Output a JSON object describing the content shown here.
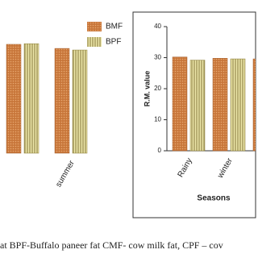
{
  "chart_data": [
    {
      "type": "bar",
      "categories": [
        null,
        "summer"
      ],
      "series": [
        {
          "name": "BMF",
          "color": "#c8763a",
          "values": [
            34.4,
            33.1
          ]
        },
        {
          "name": "BPF",
          "color": "#ece6a8",
          "values": [
            34.6,
            32.6
          ]
        }
      ],
      "ylim": [
        0,
        40
      ]
    },
    {
      "type": "bar",
      "ylabel": "R.M. value",
      "xlabel": "Seasons",
      "categories": [
        "Rainy",
        "winter",
        null
      ],
      "series": [
        {
          "name": "BMF",
          "color": "#c8763a",
          "values": [
            30.2,
            29.8,
            29.6
          ]
        },
        {
          "name": "BPF",
          "color": "#ece6a8",
          "values": [
            29.2,
            29.6,
            29.3
          ]
        }
      ],
      "ylim": [
        0,
        40
      ],
      "yticks": [
        0,
        10,
        20,
        30,
        40
      ]
    }
  ],
  "caption": "at BPF-Buffalo paneer fat CMF- cow milk fat, CPF – cov"
}
